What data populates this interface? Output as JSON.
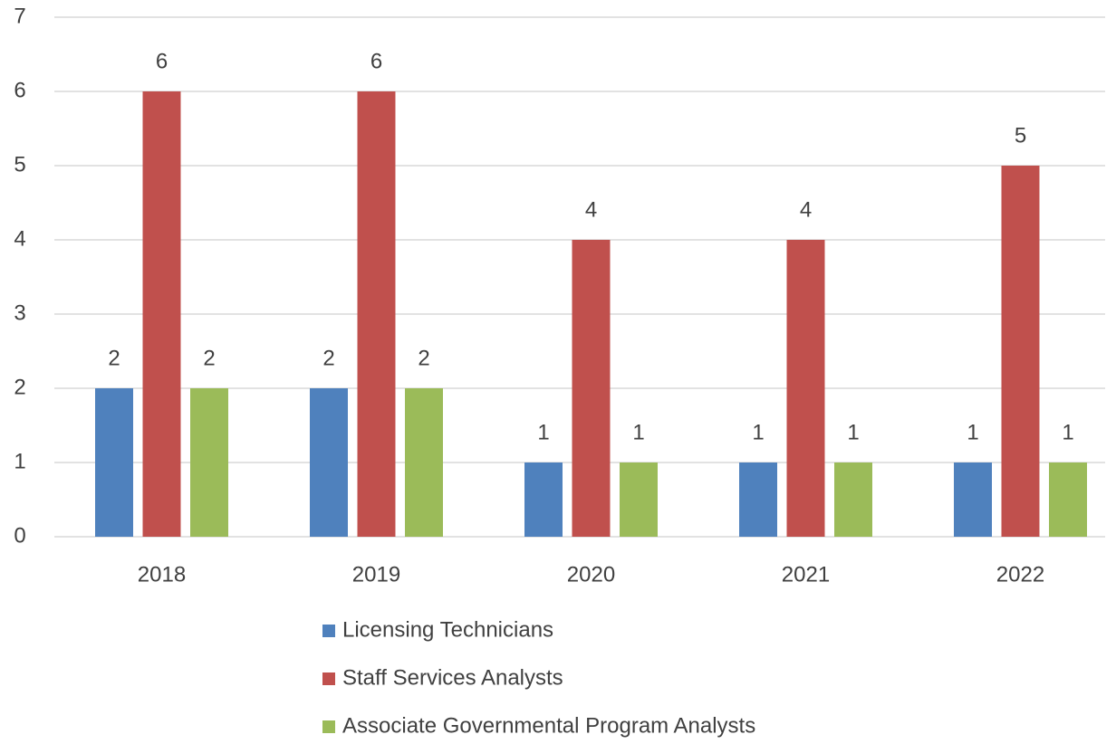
{
  "chart_data": {
    "type": "bar",
    "categories": [
      "2018",
      "2019",
      "2020",
      "2021",
      "2022"
    ],
    "series": [
      {
        "name": "Licensing Technicians",
        "color": "#4f81bd",
        "values": [
          2,
          2,
          1,
          1,
          1
        ]
      },
      {
        "name": "Staff Services Analysts",
        "color": "#c0504d",
        "values": [
          6,
          6,
          4,
          4,
          5
        ]
      },
      {
        "name": "Associate Governmental Program Analysts",
        "color": "#9bbb59",
        "values": [
          2,
          2,
          1,
          1,
          1
        ]
      }
    ],
    "ylim": [
      0,
      7
    ],
    "yticks": [
      0,
      1,
      2,
      3,
      4,
      5,
      6,
      7
    ],
    "grid": true,
    "legend": "bottom"
  }
}
